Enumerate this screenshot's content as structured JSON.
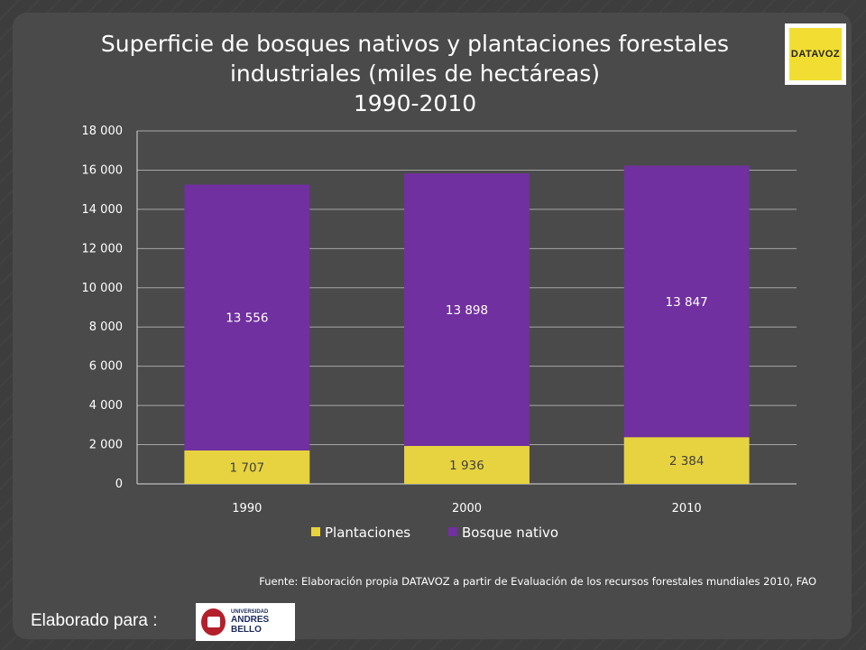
{
  "title_lines": [
    "Superficie de bosques nativos y plantaciones forestales",
    "industriales (miles de hectáreas)",
    "1990-2010"
  ],
  "logo_datavoz_text": "DATAVOZ",
  "source": "Fuente: Elaboración propia DATAVOZ a partir de Evaluación de los recursos forestales mundiales 2010, FAO",
  "made_for": "Elaborado para :",
  "logo_unab_line1": "UNIVERSIDAD",
  "logo_unab_line2": "ANDRES BELLO",
  "colors": {
    "plantaciones": "#e7d33f",
    "bosque": "#7030a0",
    "grid": "#a6a6a6",
    "axis": "#d9d9d9",
    "label_on_bar": "#404040"
  },
  "chart_data": {
    "type": "bar",
    "stacked": true,
    "categories": [
      "1990",
      "2000",
      "2010"
    ],
    "series": [
      {
        "name": "Plantaciones",
        "values": [
          1707,
          1936,
          2384
        ],
        "labels": [
          "1 707",
          "1 936",
          "2 384"
        ]
      },
      {
        "name": "Bosque nativo",
        "values": [
          13556,
          13898,
          13847
        ],
        "labels": [
          "13 556",
          "13 898",
          "13 847"
        ]
      }
    ],
    "ylim": [
      0,
      18000
    ],
    "yticks": [
      0,
      2000,
      4000,
      6000,
      8000,
      10000,
      12000,
      14000,
      16000,
      18000
    ],
    "ytick_labels": [
      "0",
      "2 000",
      "4 000",
      "6 000",
      "8 000",
      "10 000",
      "12 000",
      "14 000",
      "16 000",
      "18 000"
    ],
    "grid": true,
    "legend_position": "bottom"
  }
}
